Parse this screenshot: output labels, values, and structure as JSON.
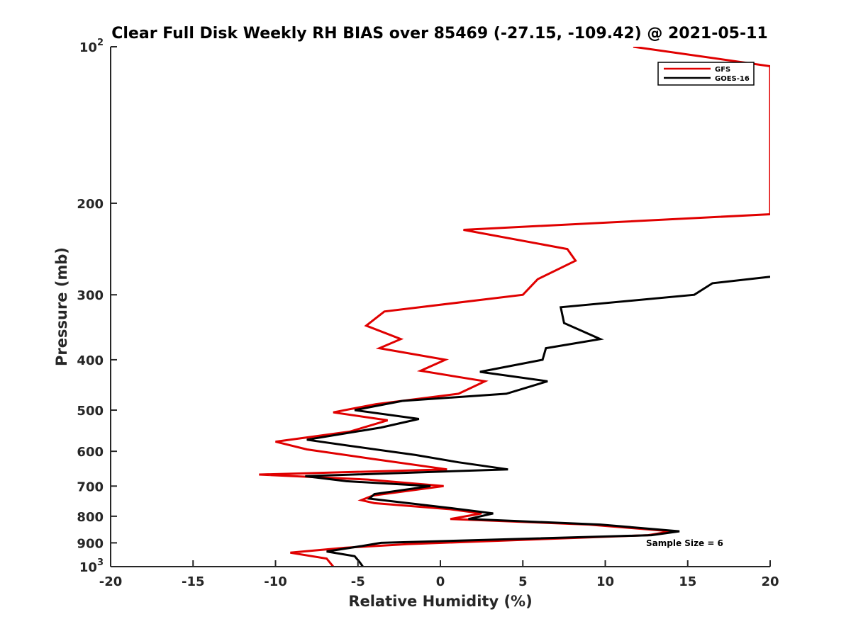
{
  "chart_data": {
    "type": "line",
    "title": "Clear Full Disk Weekly RH BIAS over 85469 (-27.15, -109.42) @ 2021-05-11",
    "xlabel": "Relative Humidity (%)",
    "ylabel": "Pressure (mb)",
    "xlim": [
      -20,
      20
    ],
    "ylim": [
      100,
      1000
    ],
    "yscale": "log",
    "y_reversed": true,
    "x_ticks": [
      "-20",
      "-15",
      "-10",
      "-5",
      "0",
      "5",
      "10",
      "15",
      "20"
    ],
    "y_ticks": [
      {
        "value": 100,
        "base": "10",
        "exp": "2"
      },
      {
        "value": 200,
        "label": "200"
      },
      {
        "value": 300,
        "label": "300"
      },
      {
        "value": 400,
        "label": "400"
      },
      {
        "value": 500,
        "label": "500"
      },
      {
        "value": 600,
        "label": "600"
      },
      {
        "value": 700,
        "label": "700"
      },
      {
        "value": 800,
        "label": "800"
      },
      {
        "value": 900,
        "label": "900"
      },
      {
        "value": 1000,
        "base": "10",
        "exp": "3"
      }
    ],
    "legend": {
      "position": "top-right"
    },
    "annotation": "Sample Size = 6",
    "series": [
      {
        "name": "GFS",
        "color": "#e00000",
        "points": [
          [
            11.7,
            100
          ],
          [
            20,
            109
          ],
          [
            20,
            210
          ],
          [
            1.4,
            225
          ],
          [
            7.7,
            245
          ],
          [
            8.2,
            258
          ],
          [
            5.9,
            280
          ],
          [
            5.0,
            300
          ],
          [
            -3.4,
            323
          ],
          [
            -4.5,
            344
          ],
          [
            -2.4,
            365
          ],
          [
            -3.7,
            380
          ],
          [
            0.3,
            400
          ],
          [
            -1.2,
            420
          ],
          [
            2.7,
            440
          ],
          [
            1.1,
            465
          ],
          [
            -3.9,
            487
          ],
          [
            -6.5,
            505
          ],
          [
            -3.2,
            523
          ],
          [
            -5.5,
            550
          ],
          [
            -10.0,
            575
          ],
          [
            -8.1,
            595
          ],
          [
            -4.2,
            620
          ],
          [
            0.4,
            650
          ],
          [
            -11.0,
            665
          ],
          [
            -4.4,
            680
          ],
          [
            0.2,
            700
          ],
          [
            -4.1,
            730
          ],
          [
            -4.8,
            745
          ],
          [
            -4.0,
            755
          ],
          [
            0.5,
            775
          ],
          [
            2.5,
            790
          ],
          [
            0.6,
            810
          ],
          [
            9.0,
            830
          ],
          [
            14.0,
            855
          ],
          [
            12.6,
            870
          ],
          [
            -2.0,
            905
          ],
          [
            -5.8,
            920
          ],
          [
            -9.1,
            940
          ],
          [
            -6.9,
            965
          ],
          [
            -6.5,
            1000
          ]
        ]
      },
      {
        "name": "GOES-16",
        "color": "#000000",
        "points": [
          [
            20,
            277
          ],
          [
            16.5,
            285
          ],
          [
            15.4,
            300
          ],
          [
            7.3,
            317
          ],
          [
            7.5,
            340
          ],
          [
            9.7,
            365
          ],
          [
            6.4,
            380
          ],
          [
            6.2,
            400
          ],
          [
            2.4,
            422
          ],
          [
            6.5,
            440
          ],
          [
            4.0,
            465
          ],
          [
            -2.3,
            480
          ],
          [
            -5.2,
            500
          ],
          [
            -1.3,
            520
          ],
          [
            -3.6,
            540
          ],
          [
            -8.1,
            570
          ],
          [
            -5.6,
            585
          ],
          [
            -1.5,
            610
          ],
          [
            1.1,
            630
          ],
          [
            4.1,
            650
          ],
          [
            -8.2,
            670
          ],
          [
            -5.7,
            685
          ],
          [
            -0.6,
            700
          ],
          [
            -4.0,
            725
          ],
          [
            -4.3,
            740
          ],
          [
            0.4,
            770
          ],
          [
            3.2,
            790
          ],
          [
            1.7,
            810
          ],
          [
            9.7,
            830
          ],
          [
            14.5,
            855
          ],
          [
            12.8,
            870
          ],
          [
            -3.6,
            900
          ],
          [
            -4.5,
            910
          ],
          [
            -6.9,
            935
          ],
          [
            -5.2,
            955
          ],
          [
            -4.9,
            980
          ],
          [
            -4.7,
            1000
          ]
        ]
      }
    ]
  }
}
